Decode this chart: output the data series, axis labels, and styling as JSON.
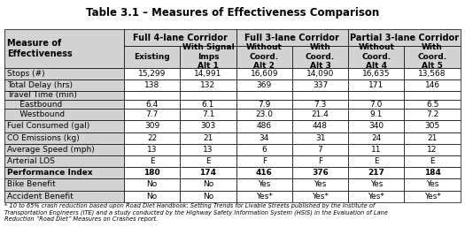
{
  "title": "Table 3.1 – Measures of Effectiveness Comparison",
  "col_groups": [
    {
      "label": "Full 4-lane Corridor",
      "span": 2
    },
    {
      "label": "Full 3-lane Corridor",
      "span": 2
    },
    {
      "label": "Partial 3-lane Corridor",
      "span": 2
    }
  ],
  "col_headers": [
    "Existing",
    "With Signal\nImps\nAlt 1",
    "Without\nCoord.\nAlt 2",
    "With\nCoord.\nAlt 3",
    "Without\nCoord.\nAlt 4",
    "With\nCoord.\nAlt 5"
  ],
  "row_labels": [
    "Stops (#)",
    "Total Delay (hrs)",
    "Travel Time (min)\n     Eastbound\n     Westbound",
    "Fuel Consumed (gal)",
    "CO Emissions (kg)",
    "Average Speed (mph)",
    "Arterial LOS",
    "Performance Index",
    "Bike Benefit",
    "Accident Benefit"
  ],
  "row_labels_display": [
    "Stops (#)",
    "Total Delay (hrs)",
    "Travel Time (min)",
    "Fuel Consumed (gal)",
    "CO Emissions (kg)",
    "Average Speed (mph)",
    "Arterial LOS",
    "Performance Index",
    "Bike Benefit",
    "Accident Benefit"
  ],
  "sub_rows": {
    "Travel Time (min)": [
      "Eastbound",
      "Westbound"
    ]
  },
  "data": [
    [
      "15,299",
      "14,991",
      "16,609",
      "14,090",
      "16,635",
      "13,568"
    ],
    [
      "138",
      "132",
      "369",
      "337",
      "171",
      "146"
    ],
    [
      "",
      "",
      "",
      "",
      "",
      ""
    ],
    [
      "6.4",
      "6.1",
      "7.9",
      "7.3",
      "7.0",
      "6.5"
    ],
    [
      "7.7",
      "7.1",
      "23.0",
      "21.4",
      "9.1",
      "7.2"
    ],
    [
      "309",
      "303",
      "486",
      "448",
      "340",
      "305"
    ],
    [
      "22",
      "21",
      "34",
      "31",
      "24",
      "21"
    ],
    [
      "13",
      "13",
      "6",
      "7",
      "11",
      "12"
    ],
    [
      "E",
      "E",
      "F",
      "F",
      "E",
      "E"
    ],
    [
      "180",
      "174",
      "416",
      "376",
      "217",
      "184"
    ],
    [
      "No",
      "No",
      "Yes",
      "Yes",
      "Yes",
      "Yes"
    ],
    [
      "No",
      "No",
      "Yes*",
      "Yes*",
      "Yes*",
      "Yes*"
    ]
  ],
  "bold_rows": [
    9
  ],
  "footnote": "* 10 to 65% crash reduction based upon Road Diet Handbook: Setting Trends for Livable Streets published by the Institute of\nTransportation Engineers (ITE) and a study conducted by the Highway Safety Information System (HSIS) in the Evaluation of Lane\nReduction “Road Diet” Measures on Crashes report.",
  "header_bg": "#d3d3d3",
  "group_bg": "#d3d3d3",
  "data_bg_even": "#ffffff",
  "data_bg_odd": "#ffffff",
  "border_color": "#000000"
}
